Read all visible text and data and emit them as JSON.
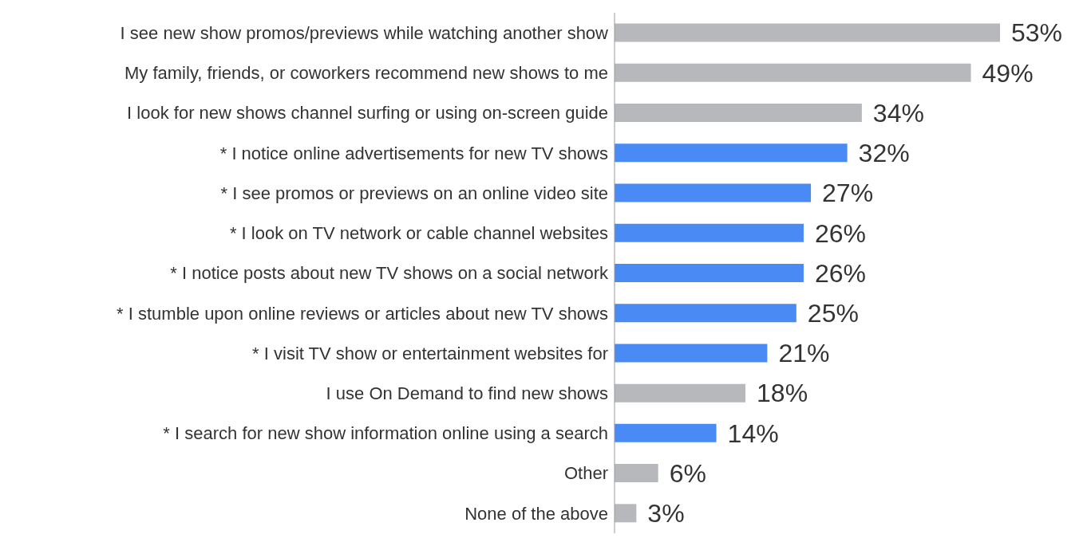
{
  "chart_data": {
    "type": "bar",
    "orientation": "horizontal",
    "categories": [
      "I see new show promos/previews while watching another show",
      "My family, friends, or coworkers recommend new shows to me",
      "I look for new shows channel surfing or using on-screen guide",
      "* I notice online advertisements for new TV shows",
      "* I see promos or previews on an online video site",
      "* I look on TV network or cable channel websites",
      "* I notice posts about new TV shows on a social network",
      "* I stumble upon online reviews or articles about new TV shows",
      "* I visit TV show or entertainment websites for",
      "I use On Demand to find new shows",
      "* I search for new show information online using a search",
      "Other",
      "None of the above"
    ],
    "values": [
      53,
      49,
      34,
      32,
      27,
      26,
      26,
      25,
      21,
      18,
      14,
      6,
      3
    ],
    "value_labels": [
      "53%",
      "49%",
      "34%",
      "32%",
      "27%",
      "26%",
      "26%",
      "25%",
      "21%",
      "18%",
      "14%",
      "6%",
      "3%"
    ],
    "colors": [
      "#b7b8bc",
      "#b7b8bc",
      "#b7b8bc",
      "#4a8af4",
      "#4a8af4",
      "#4a8af4",
      "#4a8af4",
      "#4a8af4",
      "#4a8af4",
      "#b7b8bc",
      "#4a8af4",
      "#b7b8bc",
      "#b7b8bc"
    ]
  }
}
